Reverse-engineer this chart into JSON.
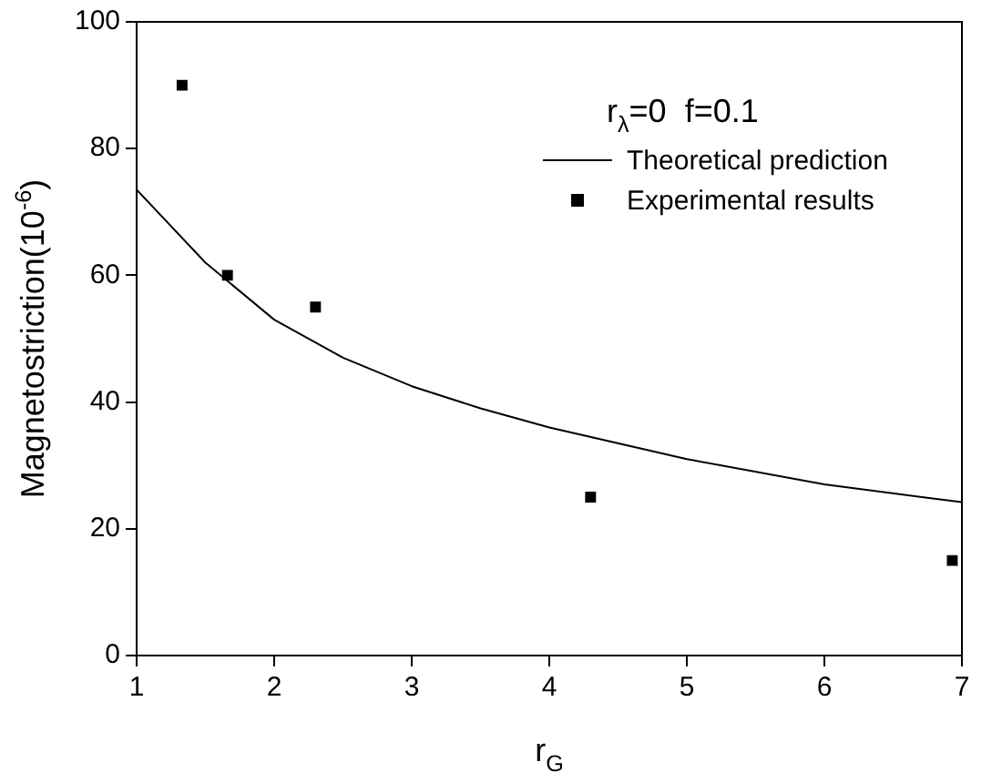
{
  "chart_data": {
    "type": "scatter",
    "xlabel": "r$_{G}$",
    "ylabel": "Magnetostriction(10$^{-6}$)",
    "legend_title": "r$_{λ}$=0  f=0.1",
    "xlim": [
      1,
      7
    ],
    "xticks": [
      1,
      2,
      3,
      4,
      5,
      6,
      7
    ],
    "ylim": [
      0,
      100
    ],
    "yticks": [
      0,
      20,
      40,
      60,
      80,
      100
    ],
    "grid": false,
    "legend": "top right",
    "series": [
      {
        "name": "Theoretical prediction",
        "type": "line",
        "color": "#000000",
        "marker": "none",
        "line_style": "solid",
        "x": [
          1,
          1.5,
          2,
          2.5,
          3,
          3.5,
          4,
          5,
          6,
          7
        ],
        "values": [
          73.5,
          62,
          53,
          47,
          42.5,
          39,
          36,
          31,
          27,
          24.2
        ]
      },
      {
        "name": "Experimental results",
        "type": "scatter",
        "color": "#000000",
        "marker": "square",
        "x": [
          1.33,
          1.66,
          2.3,
          4.3,
          6.93
        ],
        "values": [
          90,
          60,
          55,
          25,
          15
        ]
      }
    ]
  }
}
